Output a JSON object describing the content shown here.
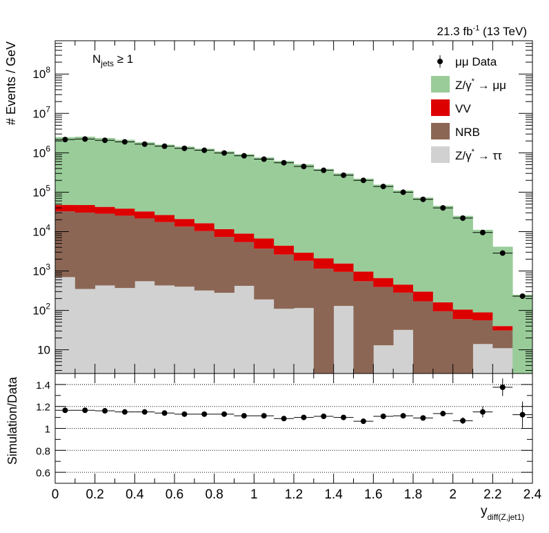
{
  "chart_data": [
    {
      "type": "bar",
      "name": "main",
      "scale": "log",
      "stacked": true,
      "bin_edges": [
        0,
        0.1,
        0.2,
        0.3,
        0.4,
        0.5,
        0.6,
        0.7,
        0.8,
        0.9,
        1.0,
        1.1,
        1.2,
        1.3,
        1.4,
        1.5,
        1.6,
        1.7,
        1.8,
        1.9,
        2.0,
        2.1,
        2.2,
        2.3,
        2.4
      ],
      "xlim": [
        0,
        2.4
      ],
      "ylim": [
        2.5,
        700000000
      ],
      "ylabel": "# Events / GeV",
      "lumi_label": "21.3 fb",
      "lumi_sup": "-1",
      "lumi_suffix": " (13 TeV)",
      "selection_main": "N",
      "selection_sub": "jets",
      "selection_cond": " ≥ 1",
      "ytick_labels": [
        {
          "value": 10,
          "base": "10",
          "exp": ""
        },
        {
          "value": 100,
          "base": "10",
          "exp": "2"
        },
        {
          "value": 1000,
          "base": "10",
          "exp": "3"
        },
        {
          "value": 10000,
          "base": "10",
          "exp": "4"
        },
        {
          "value": 100000,
          "base": "10",
          "exp": "5"
        },
        {
          "value": 1000000,
          "base": "10",
          "exp": "6"
        },
        {
          "value": 10000000,
          "base": "10",
          "exp": "7"
        },
        {
          "value": 100000000,
          "base": "10",
          "exp": "8"
        }
      ],
      "series": [
        {
          "name": "Z/γ* → ττ",
          "color": "#d1d1d1",
          "values": [
            700,
            350,
            430,
            370,
            550,
            430,
            400,
            320,
            280,
            420,
            190,
            110,
            115,
            0,
            130,
            0,
            13,
            32,
            0,
            0,
            0,
            14,
            11,
            0
          ]
        },
        {
          "name": "NRB",
          "color": "#8c6655",
          "values": [
            32000,
            30000,
            28000,
            25000,
            21000,
            17000,
            13000,
            10000,
            7000,
            5000,
            3500,
            2500,
            1700,
            1150,
            820,
            550,
            380,
            250,
            170,
            95,
            60,
            42,
            20,
            0
          ]
        },
        {
          "name": "VV",
          "color": "#dd0000",
          "values": [
            15000,
            17000,
            14000,
            13000,
            11000,
            9000,
            7500,
            6000,
            4300,
            3500,
            3000,
            1800,
            1100,
            950,
            600,
            420,
            270,
            170,
            130,
            65,
            45,
            33,
            9,
            0
          ]
        },
        {
          "name": "Z/γ* → μμ",
          "color": "#99cc99",
          "values": [
            2450000,
            2520000,
            2330000,
            2100000,
            1820000,
            1590000,
            1420000,
            1260000,
            1080000,
            920000,
            760000,
            620000,
            510000,
            390000,
            300000,
            220000,
            155000,
            111000,
            73000,
            45000,
            25000,
            11000,
            4100,
            250
          ]
        }
      ],
      "data_series": {
        "name": "μμ Data",
        "color": "#000000",
        "values": [
          2170000,
          2240000,
          2080000,
          1900000,
          1660000,
          1470000,
          1300000,
          1160000,
          990000,
          840000,
          690000,
          560000,
          450000,
          360000,
          270000,
          200000,
          140000,
          100000,
          66000,
          40000,
          22000,
          9500,
          2850,
          230
        ]
      },
      "legend": {
        "position": "top-right",
        "entries": [
          {
            "label_main": "μμ Data",
            "label_sup": "",
            "label_tail": "",
            "kind": "marker",
            "color": "#000000"
          },
          {
            "label_main": "Z/γ",
            "label_sup": "*",
            "label_tail": " → μμ",
            "kind": "box",
            "color": "#99cc99"
          },
          {
            "label_main": "VV",
            "label_sup": "",
            "label_tail": "",
            "kind": "box",
            "color": "#dd0000"
          },
          {
            "label_main": "NRB",
            "label_sup": "",
            "label_tail": "",
            "kind": "box",
            "color": "#8c6655"
          },
          {
            "label_main": "Z/γ",
            "label_sup": "*",
            "label_tail": " → ττ",
            "kind": "box",
            "color": "#d1d1d1"
          }
        ]
      }
    },
    {
      "type": "scatter",
      "name": "ratio",
      "ylim": [
        0.5,
        1.5
      ],
      "ylabel": "Simulation/Data",
      "xlabel_main": "y",
      "xlabel_sub": "diff(Z,jet1)",
      "yticks": [
        0.6,
        0.8,
        1,
        1.2,
        1.4
      ],
      "ytick_labels": [
        "0.6",
        "0.8",
        "1",
        "1.2",
        "1.4"
      ],
      "xticks": [
        0,
        0.2,
        0.4,
        0.6,
        0.8,
        1,
        1.2,
        1.4,
        1.6,
        1.8,
        2,
        2.2,
        2.4
      ],
      "xtick_labels": [
        "0",
        "0.2",
        "0.4",
        "0.6",
        "0.8",
        "1",
        "1.2",
        "1.4",
        "1.6",
        "1.8",
        "2",
        "2.2",
        "2.4"
      ],
      "x": [
        0.05,
        0.15,
        0.25,
        0.35,
        0.45,
        0.55,
        0.65,
        0.75,
        0.85,
        0.95,
        1.05,
        1.15,
        1.25,
        1.35,
        1.45,
        1.55,
        1.65,
        1.75,
        1.85,
        1.95,
        2.05,
        2.15,
        2.25,
        2.35
      ],
      "values": [
        1.165,
        1.165,
        1.16,
        1.15,
        1.15,
        1.14,
        1.13,
        1.13,
        1.13,
        1.115,
        1.115,
        1.09,
        1.1,
        1.11,
        1.1,
        1.065,
        1.11,
        1.115,
        1.095,
        1.135,
        1.07,
        1.15,
        1.375,
        1.125
      ],
      "errors": [
        0.005,
        0.005,
        0.005,
        0.005,
        0.005,
        0.005,
        0.005,
        0.005,
        0.005,
        0.006,
        0.006,
        0.007,
        0.007,
        0.008,
        0.01,
        0.012,
        0.012,
        0.014,
        0.016,
        0.02,
        0.03,
        0.05,
        0.08,
        0.12
      ],
      "reference_lines": [
        0.6,
        0.8,
        1,
        1.2,
        1.4
      ]
    }
  ]
}
